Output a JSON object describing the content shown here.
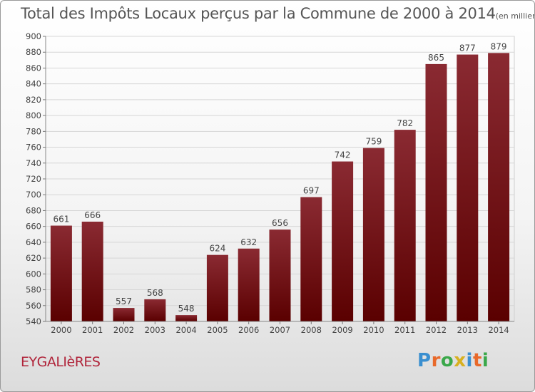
{
  "chart_data": {
    "type": "bar",
    "title": "Total des Impôts Locaux perçus par la Commune de 2000 à 2014",
    "subtitle": "(en milliers d'€)",
    "categories": [
      "2000",
      "2001",
      "2002",
      "2003",
      "2004",
      "2005",
      "2006",
      "2007",
      "2008",
      "2009",
      "2010",
      "2011",
      "2012",
      "2013",
      "2014"
    ],
    "values": [
      661,
      666,
      557,
      568,
      548,
      624,
      632,
      656,
      697,
      742,
      759,
      782,
      865,
      877,
      879
    ],
    "ylim": [
      540,
      900
    ],
    "ytick_step": 20,
    "xlabel": "",
    "ylabel": "",
    "grid": true,
    "bar_color_top": "#8a2a32",
    "bar_color_bottom": "#5a0000"
  },
  "commune": "EYGALIèRES",
  "logo": {
    "letters": [
      "P",
      "r",
      "o",
      "x",
      "i",
      "t",
      "i"
    ],
    "colors": [
      "#3a8fd0",
      "#e8692a",
      "#3aa84a",
      "#d8b020",
      "#3a8fd0",
      "#e8692a",
      "#3aa84a"
    ]
  }
}
